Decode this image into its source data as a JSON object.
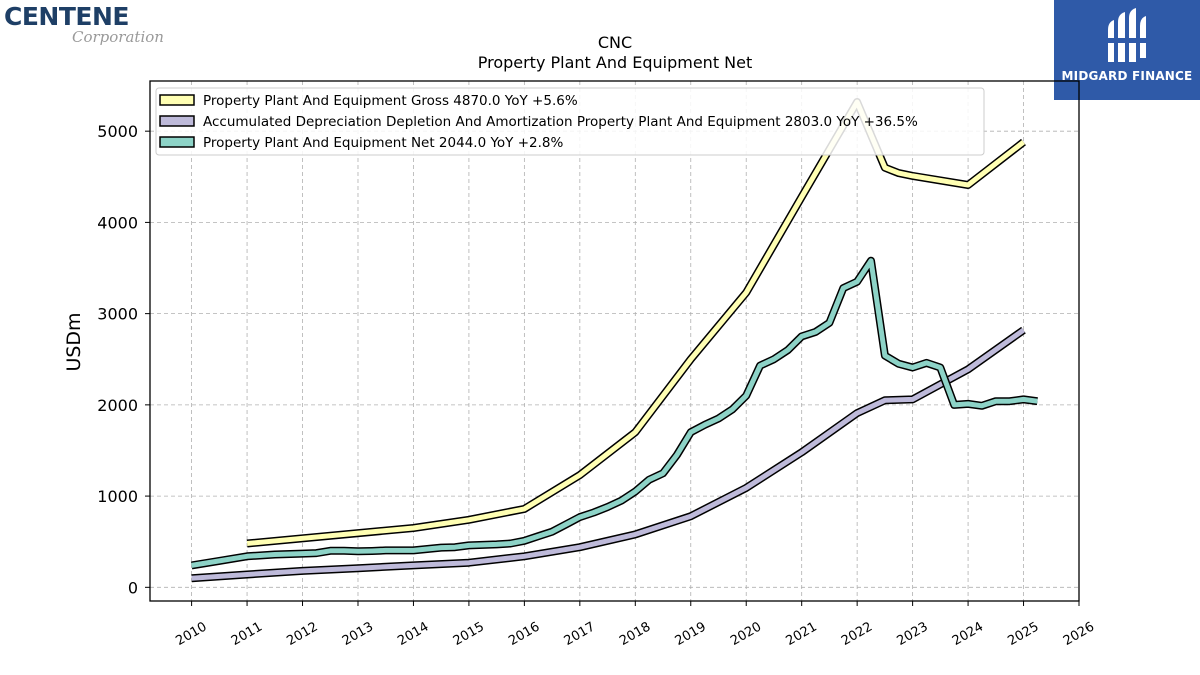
{
  "branding": {
    "left_logo_main": "CENTENE",
    "left_logo_sub": "Corporation",
    "right_logo_text": "MIDGARD FINANCE"
  },
  "chart_data": {
    "type": "line",
    "title": "CNC",
    "subtitle": "Property Plant And Equipment Net",
    "ylabel": "USDm",
    "xlabel": "",
    "xlim": [
      2009.25,
      2026.0
    ],
    "ylim": [
      -150,
      5550
    ],
    "yticks": [
      0,
      1000,
      2000,
      3000,
      4000,
      5000
    ],
    "xticks": [
      "2010",
      "2011",
      "2012",
      "2013",
      "2014",
      "2015",
      "2016",
      "2017",
      "2018",
      "2019",
      "2020",
      "2021",
      "2022",
      "2023",
      "2024",
      "2025",
      "2026"
    ],
    "grid": true,
    "legend_position": "top-left",
    "series": [
      {
        "name": "Property Plant And Equipment Gross  4870.0 YoY +5.6%",
        "color": "#ffffb3",
        "x": [
          2011.0,
          2014.0,
          2015.0,
          2016.0,
          2017.0,
          2018.0,
          2019.0,
          2020.0,
          2021.0,
          2022.0,
          2022.5,
          2022.75,
          2023.0,
          2024.0,
          2025.0
        ],
        "y": [
          480,
          650,
          740,
          860,
          1230,
          1700,
          2500,
          3230,
          4280,
          5320,
          4600,
          4540,
          4510,
          4410,
          4880
        ]
      },
      {
        "name": "Accumulated Depreciation Depletion And Amortization Property Plant And Equipment  2803.0 YoY +36.5%",
        "color": "#bebada",
        "x": [
          2010.0,
          2011.0,
          2012.0,
          2013.0,
          2014.0,
          2015.0,
          2016.0,
          2017.0,
          2018.0,
          2019.0,
          2020.0,
          2021.0,
          2022.0,
          2022.5,
          2023.0,
          2024.0,
          2025.0
        ],
        "y": [
          100,
          140,
          180,
          210,
          240,
          270,
          340,
          440,
          580,
          780,
          1090,
          1480,
          1910,
          2050,
          2060,
          2390,
          2820
        ]
      },
      {
        "name": "Property Plant And Equipment Net  2044.0 YoY +2.8%",
        "color": "#8dd3c7",
        "x": [
          2010.0,
          2010.5,
          2011.0,
          2011.5,
          2012.0,
          2012.25,
          2012.5,
          2012.75,
          2013.0,
          2013.25,
          2013.5,
          2013.75,
          2014.0,
          2014.25,
          2014.5,
          2014.75,
          2015.0,
          2015.25,
          2015.5,
          2015.75,
          2016.0,
          2016.25,
          2016.5,
          2016.75,
          2017.0,
          2017.25,
          2017.5,
          2017.75,
          2018.0,
          2018.25,
          2018.5,
          2018.75,
          2019.0,
          2019.25,
          2019.5,
          2019.75,
          2020.0,
          2020.25,
          2020.5,
          2020.75,
          2021.0,
          2021.25,
          2021.5,
          2021.75,
          2022.0,
          2022.25,
          2022.5,
          2022.75,
          2023.0,
          2023.25,
          2023.5,
          2023.75,
          2024.0,
          2024.25,
          2024.5,
          2024.75,
          2025.0,
          2025.25
        ],
        "y": [
          240,
          290,
          340,
          360,
          370,
          375,
          400,
          400,
          395,
          398,
          405,
          405,
          405,
          420,
          435,
          440,
          460,
          465,
          470,
          480,
          510,
          560,
          610,
          690,
          770,
          820,
          880,
          950,
          1050,
          1180,
          1250,
          1450,
          1700,
          1780,
          1850,
          1950,
          2100,
          2430,
          2500,
          2600,
          2750,
          2800,
          2900,
          3280,
          3350,
          3580,
          2540,
          2450,
          2410,
          2460,
          2410,
          2000,
          2010,
          1990,
          2040,
          2040,
          2060,
          2040
        ]
      }
    ]
  }
}
